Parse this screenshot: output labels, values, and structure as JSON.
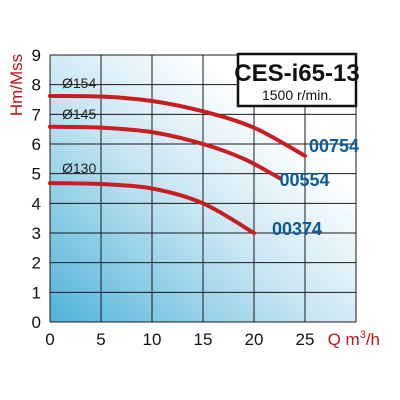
{
  "chart_data": {
    "type": "line",
    "title": "CES-i65-13",
    "subtitle": "1500 r/min.",
    "ylabel": "Hm/Mss",
    "xlabel_main": "Q m",
    "xlabel_sup": "3",
    "xlabel_tail": "/h",
    "xlim": [
      0,
      30
    ],
    "ylim": [
      0,
      9
    ],
    "xticks": [
      "0",
      "5",
      "10",
      "15",
      "20",
      "25"
    ],
    "yticks": [
      "0",
      "1",
      "2",
      "3",
      "4",
      "5",
      "6",
      "7",
      "8",
      "9"
    ],
    "grid": true,
    "colors": {
      "curve": "#c81e22",
      "model_label": "#0d5a9a",
      "grid": "#1a1a1a"
    },
    "series": [
      {
        "impeller": "Ø154",
        "model": "00754",
        "points": [
          [
            0,
            7.62
          ],
          [
            5,
            7.6
          ],
          [
            10,
            7.45
          ],
          [
            15,
            7.1
          ],
          [
            20,
            6.55
          ],
          [
            25,
            5.6
          ]
        ]
      },
      {
        "impeller": "Ø145",
        "model": "00554",
        "points": [
          [
            0,
            6.58
          ],
          [
            5,
            6.55
          ],
          [
            10,
            6.4
          ],
          [
            15,
            6.0
          ],
          [
            19,
            5.5
          ],
          [
            22.5,
            4.85
          ]
        ]
      },
      {
        "impeller": "Ø130",
        "model": "00374",
        "points": [
          [
            0,
            4.68
          ],
          [
            5,
            4.65
          ],
          [
            10,
            4.5
          ],
          [
            15,
            4.0
          ],
          [
            20,
            3.0
          ]
        ]
      }
    ]
  }
}
